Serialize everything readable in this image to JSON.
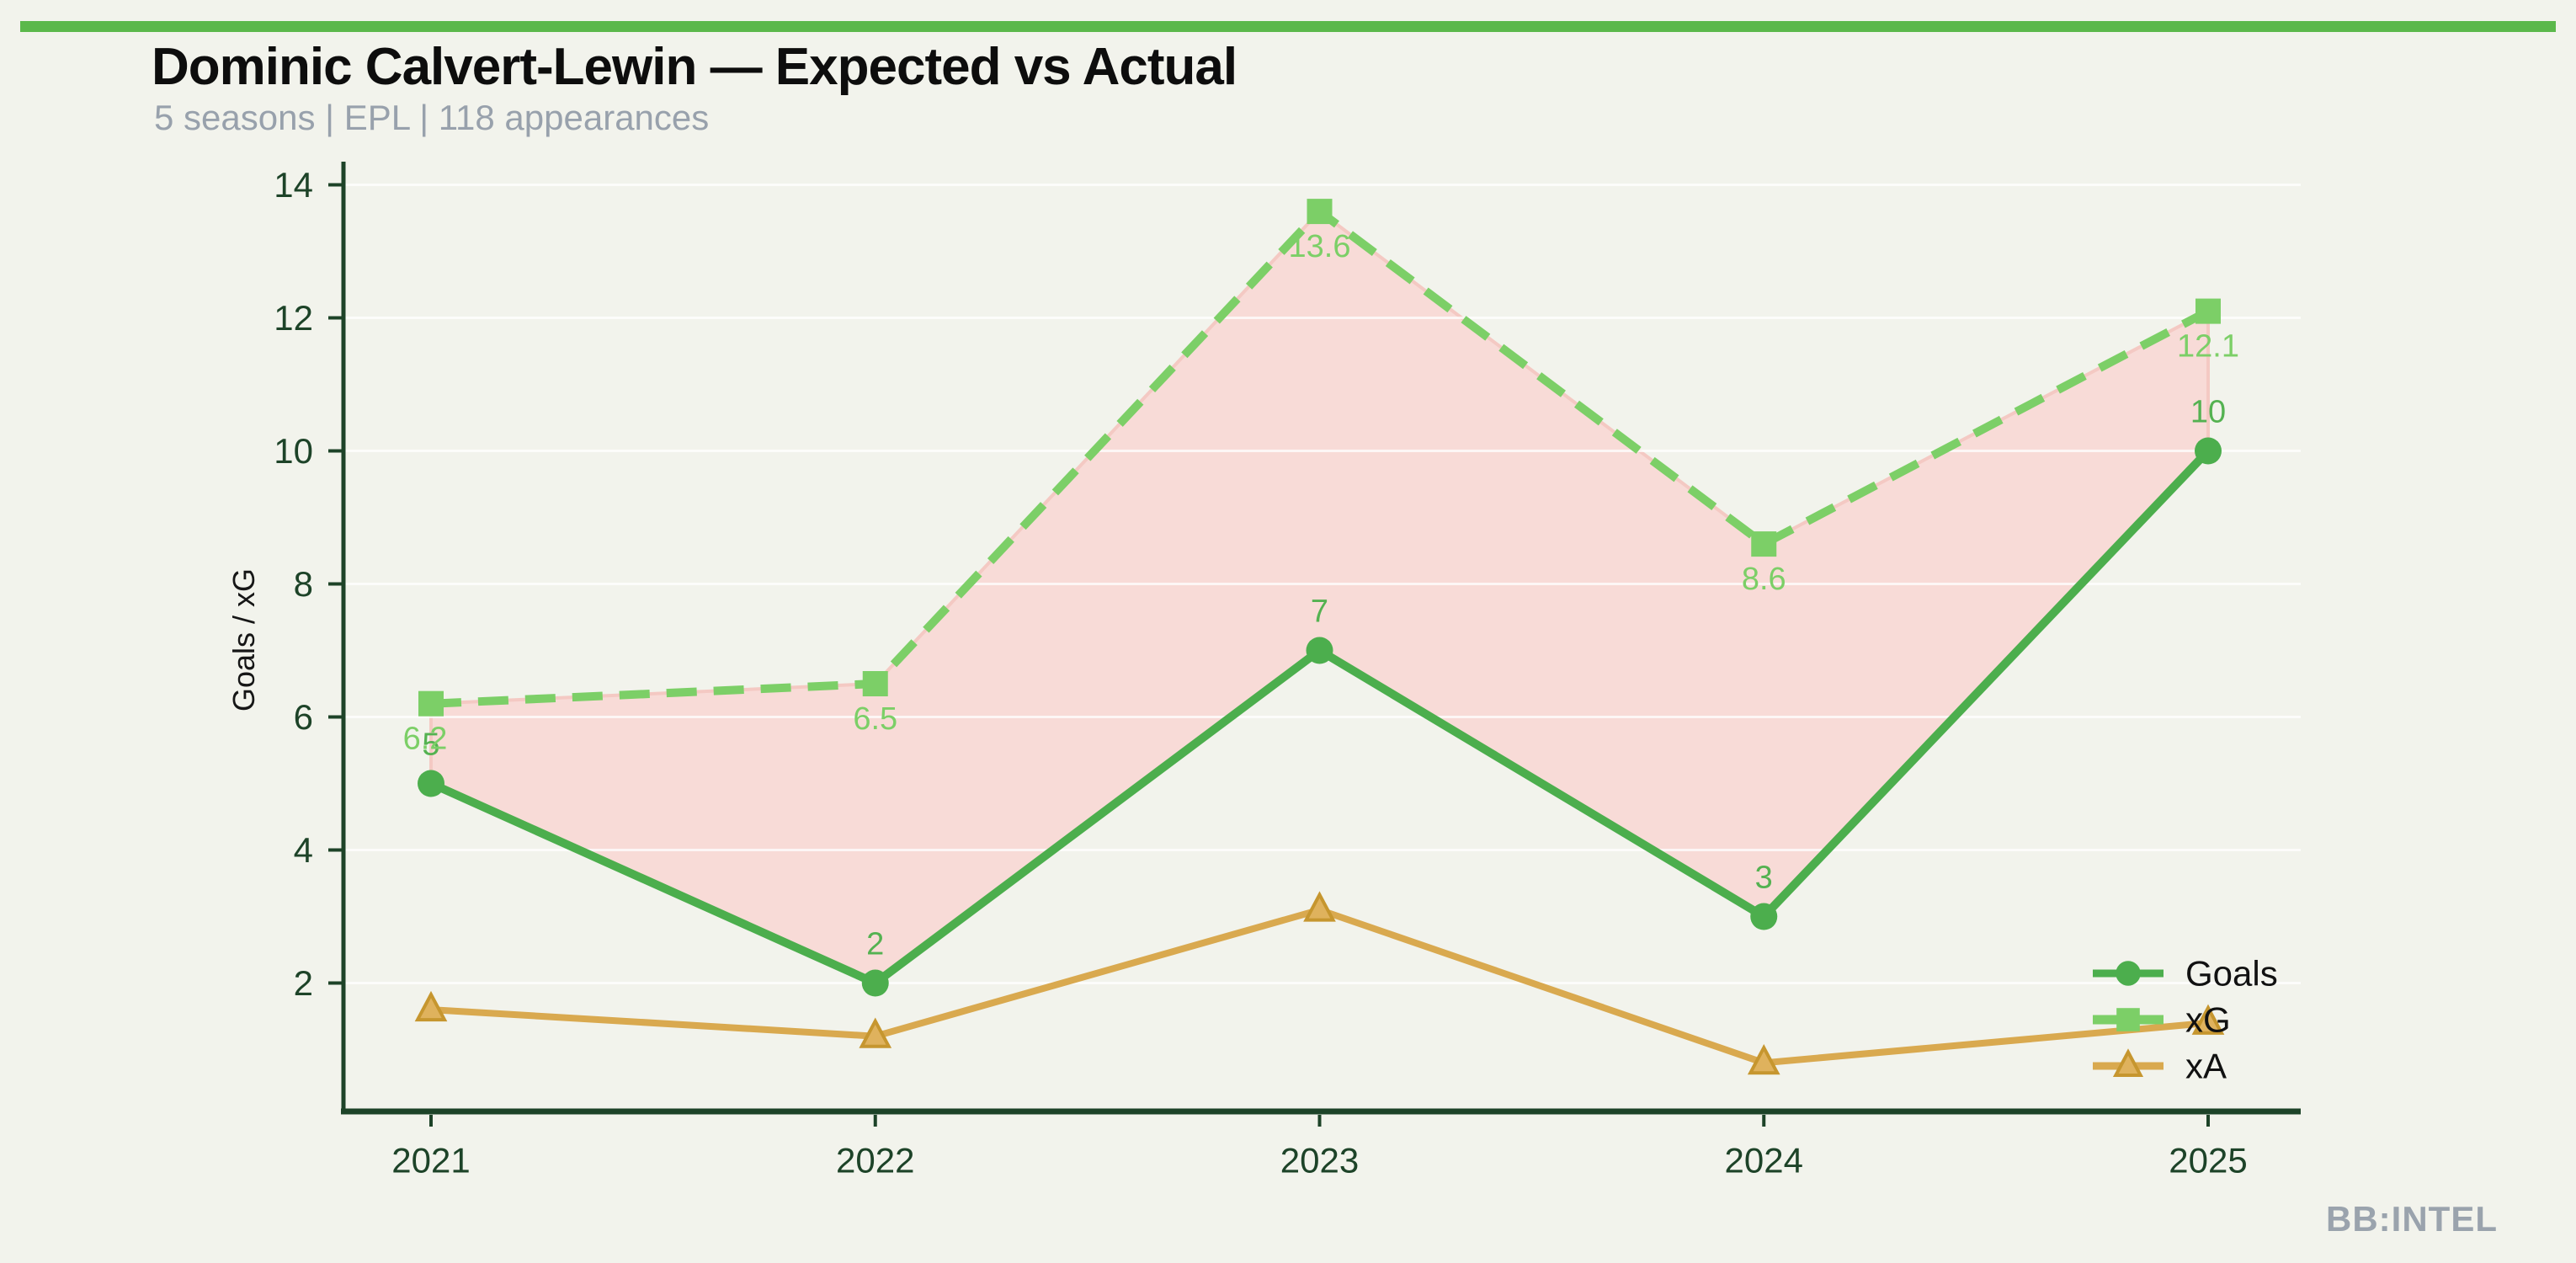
{
  "page": {
    "background": "#f2f3ec",
    "accent_bar_color": "#5bb84b"
  },
  "header": {
    "title": "Dominic Calvert-Lewin — Expected vs Actual",
    "subtitle": "5 seasons | EPL | 118 appearances"
  },
  "watermark": "BB:INTEL",
  "chart_data": {
    "type": "line",
    "title": "Dominic Calvert-Lewin — Expected vs Actual",
    "subtitle": "5 seasons | EPL | 118 appearances",
    "categories": [
      "2021",
      "2022",
      "2023",
      "2024",
      "2025"
    ],
    "series": [
      {
        "name": "Goals",
        "values": [
          5,
          2,
          7,
          3,
          10
        ],
        "labels": [
          "5",
          "2",
          "7",
          "3",
          "10"
        ],
        "color": "#4cae4d",
        "label_color": "#54b251",
        "style": "solid",
        "marker": "circle"
      },
      {
        "name": "xG",
        "values": [
          6.2,
          6.5,
          13.6,
          8.6,
          12.1
        ],
        "labels": [
          "6.2",
          "6.5",
          "13.6",
          "8.6",
          "12.1"
        ],
        "color": "#7ccf67",
        "label_color": "#7ccf67",
        "style": "dashed",
        "marker": "square"
      },
      {
        "name": "xA",
        "values": [
          1.6,
          1.2,
          3.1,
          0.8,
          1.4
        ],
        "values_estimated": true,
        "labels": [
          null,
          null,
          null,
          null,
          null
        ],
        "color": "#d9a94f",
        "marker_fill": "#dfb25d",
        "marker_edge": "#c6962f",
        "style": "solid",
        "marker": "triangle"
      }
    ],
    "fill_between": {
      "upper": "xG",
      "lower": "Goals",
      "fill_color": "#f8dbd7",
      "edge_color": "#f4c9c3"
    },
    "ylabel": "Goals / xG",
    "xlabel": "",
    "y_ticks": [
      2,
      4,
      6,
      8,
      10,
      12,
      14
    ],
    "ylim": [
      0,
      14.35
    ],
    "grid": "horizontal-faint",
    "gridline_color": "rgba(255,255,255,0.75)",
    "axis_color": "#1d4328",
    "legend": {
      "position": "lower-right",
      "entries": [
        "Goals",
        "xG",
        "xA"
      ]
    }
  }
}
